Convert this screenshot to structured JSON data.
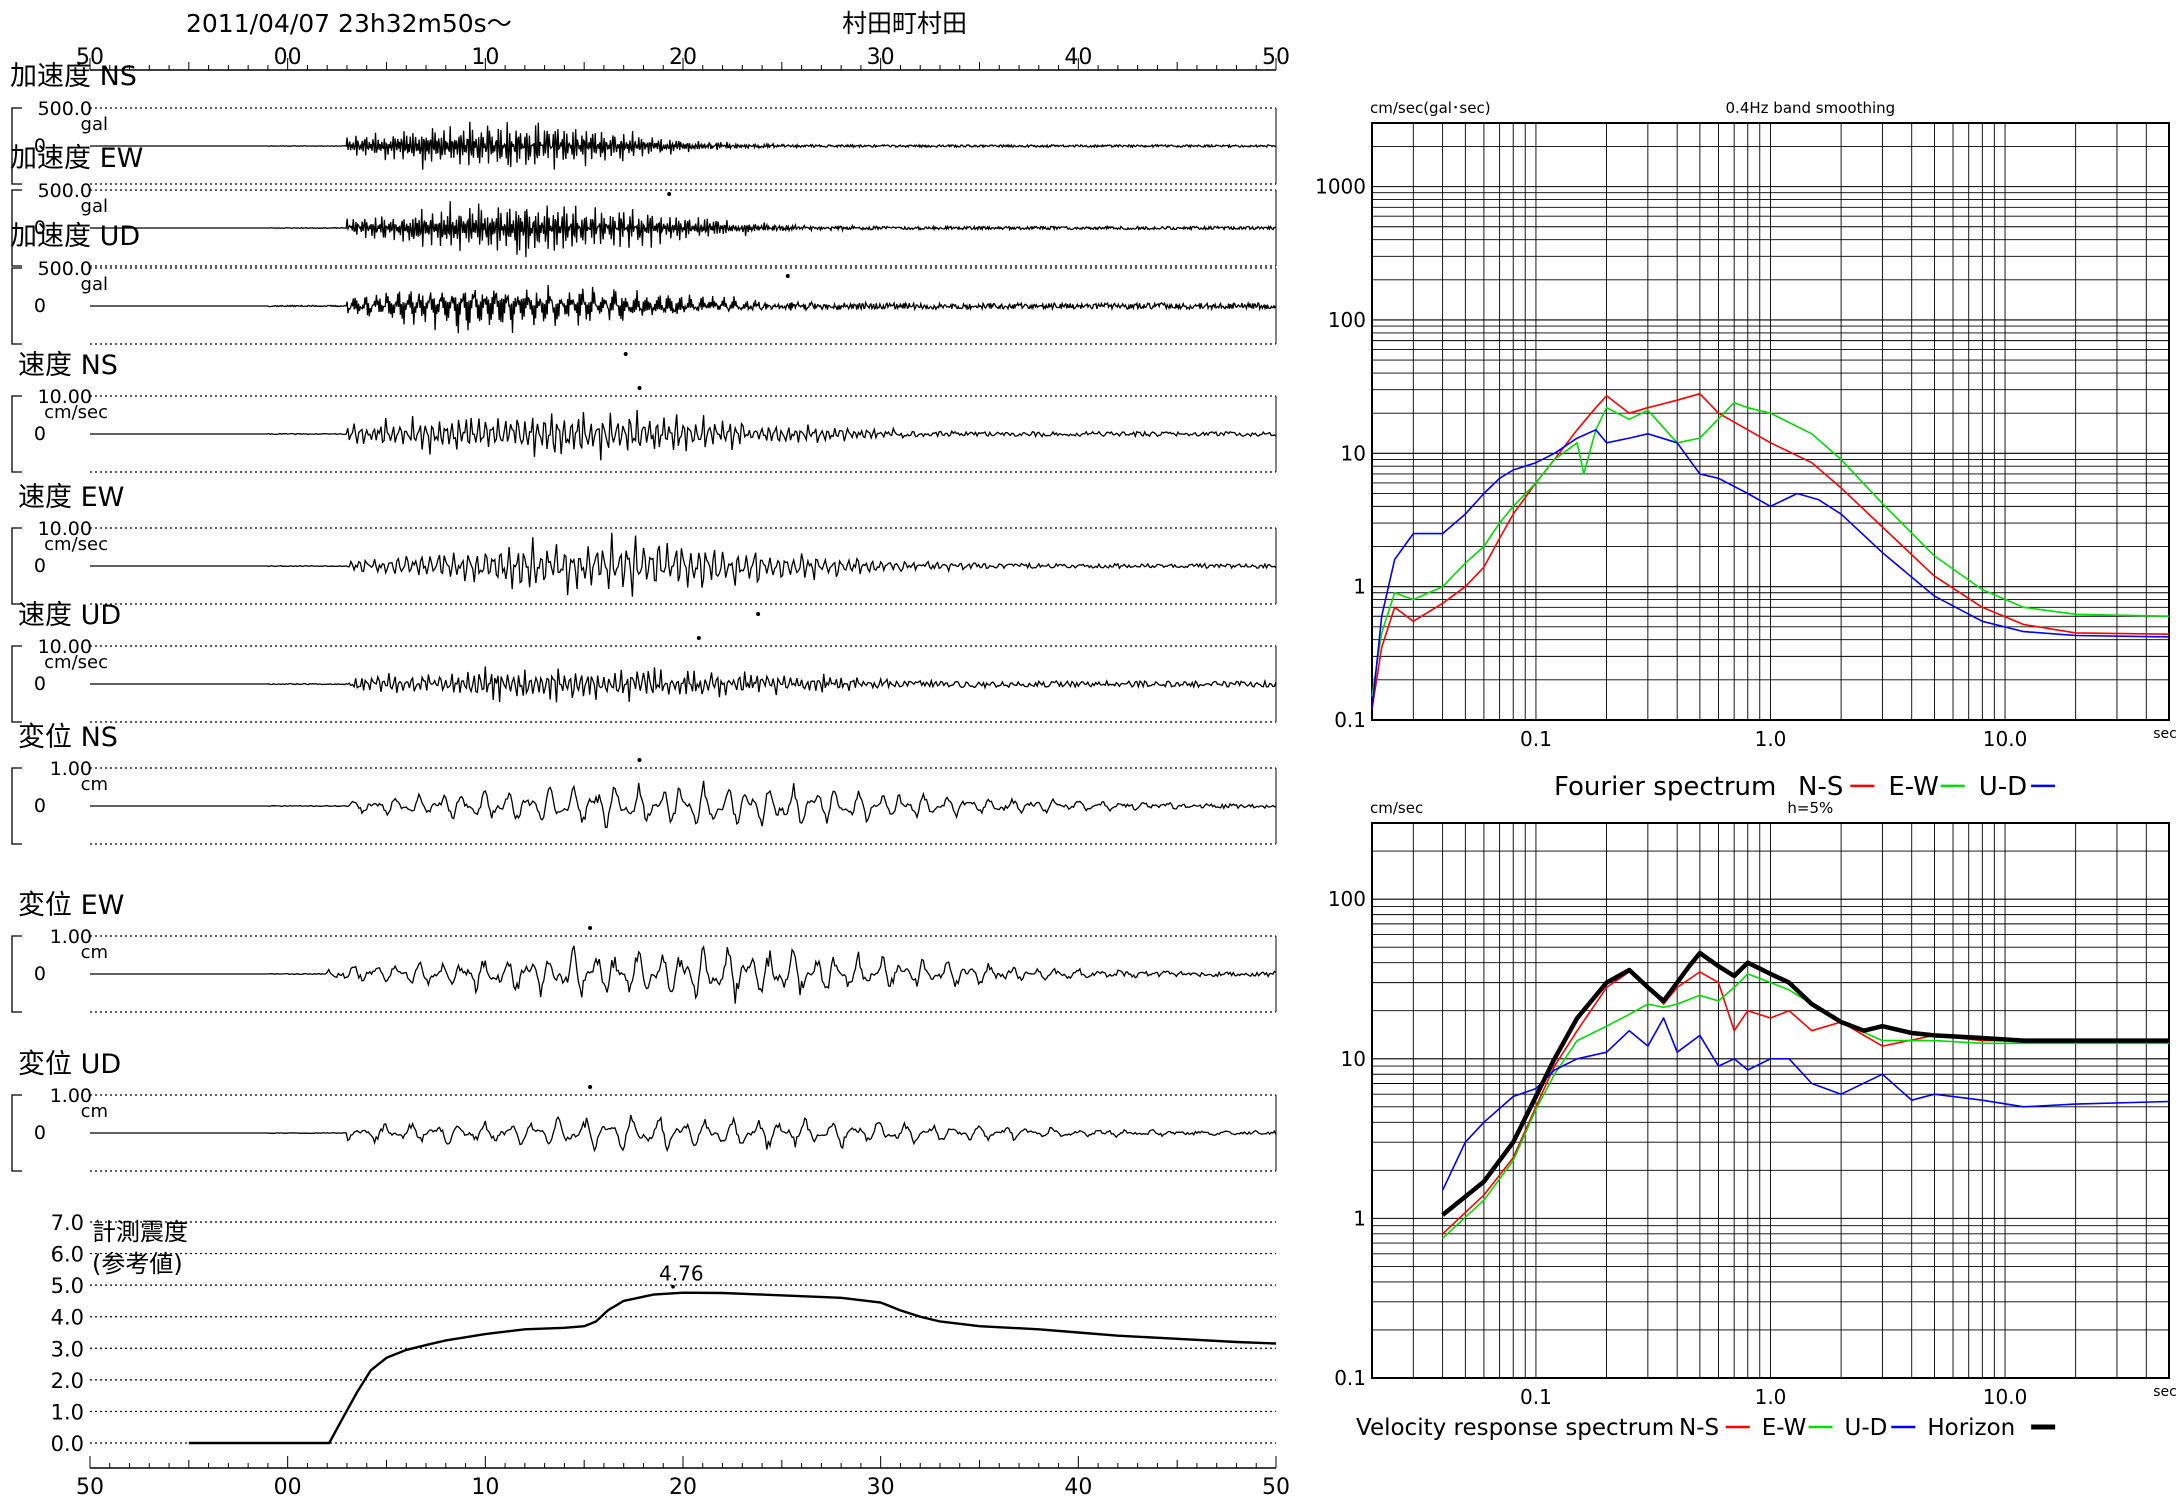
{
  "header": {
    "datetime": "2011/04/07  23h32m50s〜",
    "station": "村田町村田"
  },
  "chart_data": [
    {
      "type": "line",
      "name": "waveforms",
      "x_axis": {
        "ticks": [
          "50",
          "00",
          "10",
          "20",
          "30",
          "40",
          "50"
        ],
        "tick_seconds": [
          0,
          10,
          20,
          30,
          40,
          50,
          60
        ],
        "duration_sec": 60
      },
      "panels": [
        {
          "label": "加速度 NS",
          "scale": "500.0",
          "unit": "gal",
          "zero": "0",
          "peak_time": 29.3,
          "peak_dir": "down",
          "onset": 13,
          "burst_center": 21,
          "burst_width": 8,
          "burst_amp": 0.55,
          "noise": 0.03,
          "freq": 9.0,
          "seed": 11
        },
        {
          "label": "加速度 EW",
          "scale": "500.0",
          "unit": "gal",
          "zero": "0",
          "peak_time": 35.3,
          "peak_dir": "down",
          "onset": 13,
          "burst_center": 22,
          "burst_width": 9,
          "burst_amp": 0.6,
          "noise": 0.04,
          "freq": 9.0,
          "seed": 23
        },
        {
          "label": "加速度 UD",
          "scale": "500.0",
          "unit": "gal",
          "zero": "0",
          "peak_time": 27.1,
          "peak_dir": "down",
          "onset": 13,
          "burst_center": 21,
          "burst_width": 10,
          "burst_amp": 0.5,
          "noise": 0.08,
          "freq": 12.0,
          "seed": 37
        },
        {
          "label": "速度 NS",
          "scale": "10.00",
          "unit": "cm/sec",
          "zero": "0",
          "peak_time": 27.8,
          "peak_dir": "up",
          "onset": 13,
          "burst_center": 24,
          "burst_width": 12,
          "burst_amp": 0.55,
          "noise": 0.06,
          "freq": 3.0,
          "seed": 41
        },
        {
          "label": "速度 EW",
          "scale": "10.00",
          "unit": "cm/sec",
          "zero": "0",
          "peak_time": 33.8,
          "peak_dir": "down",
          "onset": 13,
          "burst_center": 27,
          "burst_width": 11,
          "burst_amp": 0.6,
          "noise": 0.06,
          "freq": 2.5,
          "seed": 53
        },
        {
          "label": "速度 UD",
          "scale": "10.00",
          "unit": "cm/sec",
          "zero": "0",
          "peak_time": 30.8,
          "peak_dir": "up",
          "onset": 13,
          "burst_center": 25,
          "burst_width": 12,
          "burst_amp": 0.4,
          "noise": 0.08,
          "freq": 3.5,
          "seed": 67
        },
        {
          "label": "変位 NS",
          "scale": "1.00",
          "unit": "cm",
          "zero": "0",
          "peak_time": 27.8,
          "peak_dir": "up",
          "onset": 13,
          "burst_center": 30,
          "burst_width": 16,
          "burst_amp": 0.5,
          "noise": 0.05,
          "freq": 0.9,
          "seed": 71
        },
        {
          "label": "変位 EW",
          "scale": "1.00",
          "unit": "cm",
          "zero": "0",
          "peak_time": 25.3,
          "peak_dir": "up",
          "onset": 12,
          "burst_center": 30,
          "burst_width": 15,
          "burst_amp": 0.6,
          "noise": 0.06,
          "freq": 0.9,
          "seed": 83
        },
        {
          "label": "変位 UD",
          "scale": "1.00",
          "unit": "cm",
          "zero": "0",
          "peak_time": 25.3,
          "peak_dir": "up",
          "onset": 13,
          "burst_center": 30,
          "burst_width": 18,
          "burst_amp": 0.35,
          "noise": 0.04,
          "freq": 0.8,
          "seed": 97
        }
      ]
    },
    {
      "type": "line",
      "name": "seismic-intensity",
      "title": "計測震度",
      "subtitle": "(参考値)",
      "yticks": [
        "7.0",
        "6.0",
        "5.0",
        "4.0",
        "3.0",
        "2.0",
        "1.0",
        "0.0"
      ],
      "ylim": [
        0,
        7
      ],
      "peak": {
        "t": 29.9,
        "value": "4.76"
      },
      "series": {
        "t": [
          5,
          10,
          12.1,
          12.8,
          13.5,
          14.2,
          15,
          16,
          17,
          18,
          20,
          22,
          24,
          25,
          25.6,
          26.2,
          27,
          28.5,
          30,
          32,
          34,
          36,
          38,
          40,
          41,
          42,
          43,
          45,
          48,
          50,
          52,
          55,
          58,
          60
        ],
        "v": [
          0,
          0,
          0,
          0.8,
          1.6,
          2.3,
          2.7,
          2.95,
          3.1,
          3.25,
          3.45,
          3.6,
          3.65,
          3.7,
          3.85,
          4.2,
          4.5,
          4.7,
          4.76,
          4.75,
          4.7,
          4.65,
          4.6,
          4.45,
          4.2,
          4.0,
          3.85,
          3.7,
          3.6,
          3.5,
          3.4,
          3.3,
          3.2,
          3.15
        ]
      }
    },
    {
      "type": "line",
      "name": "fourier-spectrum",
      "xscale": "log",
      "yscale": "log",
      "xlim": [
        0.02,
        50
      ],
      "ylim": [
        0.1,
        3000
      ],
      "ylabel": "cm/sec(gal･sec)",
      "note": "0.4Hz band smoothing",
      "xunit": "sec",
      "xticks": [
        "0.1",
        "1.0",
        "10.0"
      ],
      "yticks": [
        "0.1",
        "1",
        "10",
        "100",
        "1000"
      ],
      "legend": {
        "title": "Fourier spectrum",
        "entries": [
          "N-S",
          "E-W",
          "U-D"
        ]
      },
      "series": [
        {
          "name": "N-S",
          "color": "#ff0000",
          "x": [
            0.02,
            0.022,
            0.025,
            0.03,
            0.04,
            0.05,
            0.06,
            0.07,
            0.08,
            0.1,
            0.12,
            0.15,
            0.18,
            0.2,
            0.25,
            0.3,
            0.4,
            0.5,
            0.6,
            0.8,
            1.0,
            1.5,
            2,
            3,
            5,
            8,
            12,
            20,
            50
          ],
          "y": [
            0.12,
            0.35,
            0.7,
            0.55,
            0.75,
            1.0,
            1.4,
            2.3,
            3.5,
            6.0,
            9.0,
            15,
            22,
            27,
            20,
            22,
            25,
            28,
            20,
            15,
            12,
            8.5,
            5.5,
            2.8,
            1.2,
            0.7,
            0.52,
            0.45,
            0.44
          ]
        },
        {
          "name": "E-W",
          "color": "#00dd00",
          "x": [
            0.02,
            0.022,
            0.025,
            0.03,
            0.04,
            0.05,
            0.06,
            0.07,
            0.08,
            0.1,
            0.12,
            0.15,
            0.16,
            0.18,
            0.2,
            0.25,
            0.3,
            0.4,
            0.5,
            0.7,
            0.8,
            1.0,
            1.5,
            2,
            3,
            5,
            8,
            12,
            20,
            50
          ],
          "y": [
            0.15,
            0.45,
            0.9,
            0.8,
            1.0,
            1.5,
            2.0,
            3.0,
            4.0,
            6.0,
            9.0,
            12,
            7,
            15,
            22,
            18,
            21,
            12,
            13,
            24,
            22,
            20,
            14,
            9.0,
            4.2,
            1.7,
            0.95,
            0.7,
            0.62,
            0.6
          ]
        },
        {
          "name": "U-D",
          "color": "#0000ff",
          "x": [
            0.02,
            0.022,
            0.025,
            0.03,
            0.04,
            0.05,
            0.06,
            0.07,
            0.08,
            0.1,
            0.12,
            0.15,
            0.18,
            0.2,
            0.25,
            0.3,
            0.4,
            0.5,
            0.6,
            0.8,
            1.0,
            1.3,
            1.6,
            2,
            3,
            5,
            8,
            12,
            20,
            50
          ],
          "y": [
            0.12,
            0.6,
            1.6,
            2.5,
            2.5,
            3.5,
            5.0,
            6.5,
            7.5,
            8.5,
            10,
            13,
            15,
            12,
            13,
            14,
            12,
            7,
            6.5,
            5,
            4,
            5,
            4.5,
            3.5,
            1.8,
            0.85,
            0.55,
            0.46,
            0.43,
            0.42
          ]
        }
      ]
    },
    {
      "type": "line",
      "name": "velocity-response-spectrum",
      "xscale": "log",
      "yscale": "log",
      "xlim": [
        0.02,
        50
      ],
      "ylim": [
        0.1,
        300
      ],
      "ylabel": "cm/sec",
      "note": "h=5%",
      "xunit": "sec",
      "xticks": [
        "0.1",
        "1.0",
        "10.0"
      ],
      "yticks": [
        "0.1",
        "1",
        "10",
        "100"
      ],
      "legend": {
        "title": "Velocity response spectrum",
        "entries": [
          "N-S",
          "E-W",
          "U-D",
          "Horizon"
        ]
      },
      "series": [
        {
          "name": "N-S",
          "color": "#ff0000",
          "x": [
            0.04,
            0.06,
            0.08,
            0.1,
            0.12,
            0.15,
            0.2,
            0.25,
            0.3,
            0.35,
            0.4,
            0.5,
            0.6,
            0.7,
            0.8,
            1.0,
            1.2,
            1.5,
            2,
            3,
            5,
            8,
            12,
            20,
            50
          ],
          "y": [
            0.8,
            1.4,
            2.4,
            5.0,
            9.0,
            15,
            28,
            35,
            28,
            22,
            28,
            35,
            30,
            15,
            20,
            18,
            20,
            15,
            17,
            12,
            14,
            13,
            13,
            13,
            13
          ]
        },
        {
          "name": "E-W",
          "color": "#00dd00",
          "x": [
            0.04,
            0.06,
            0.08,
            0.1,
            0.12,
            0.15,
            0.2,
            0.25,
            0.3,
            0.35,
            0.4,
            0.5,
            0.6,
            0.7,
            0.8,
            1.0,
            1.2,
            1.5,
            2,
            3,
            5,
            8,
            12,
            20,
            50
          ],
          "y": [
            0.75,
            1.3,
            2.3,
            4.8,
            8.0,
            13,
            16,
            19,
            22,
            21,
            22,
            25,
            23,
            28,
            34,
            30,
            27,
            22,
            17,
            13,
            13,
            12.5,
            12.5,
            12.5,
            12.5
          ]
        },
        {
          "name": "U-D",
          "color": "#0000ff",
          "x": [
            0.04,
            0.05,
            0.06,
            0.08,
            0.1,
            0.12,
            0.15,
            0.2,
            0.25,
            0.3,
            0.35,
            0.4,
            0.5,
            0.6,
            0.7,
            0.8,
            1.0,
            1.2,
            1.5,
            2,
            3,
            4,
            5,
            8,
            12,
            20,
            50
          ],
          "y": [
            1.5,
            3.0,
            4.0,
            5.8,
            6.5,
            8.5,
            10,
            11,
            15,
            12,
            18,
            11,
            14,
            9,
            10,
            8.5,
            10,
            10,
            7,
            6,
            8,
            5.5,
            6,
            5.5,
            5,
            5.2,
            5.4
          ]
        },
        {
          "name": "Horizon",
          "color": "#000000",
          "x": [
            0.04,
            0.06,
            0.08,
            0.1,
            0.12,
            0.15,
            0.2,
            0.25,
            0.3,
            0.35,
            0.4,
            0.45,
            0.5,
            0.6,
            0.7,
            0.8,
            1.0,
            1.2,
            1.5,
            2,
            2.5,
            3,
            4,
            5,
            8,
            12,
            20,
            50
          ],
          "y": [
            1.05,
            1.7,
            3.0,
            5.8,
            10,
            18,
            30,
            36,
            28,
            23,
            30,
            38,
            46,
            38,
            33,
            40,
            34,
            30,
            22,
            17,
            15,
            16,
            14.5,
            14,
            13.5,
            13,
            13,
            13
          ]
        }
      ]
    }
  ]
}
